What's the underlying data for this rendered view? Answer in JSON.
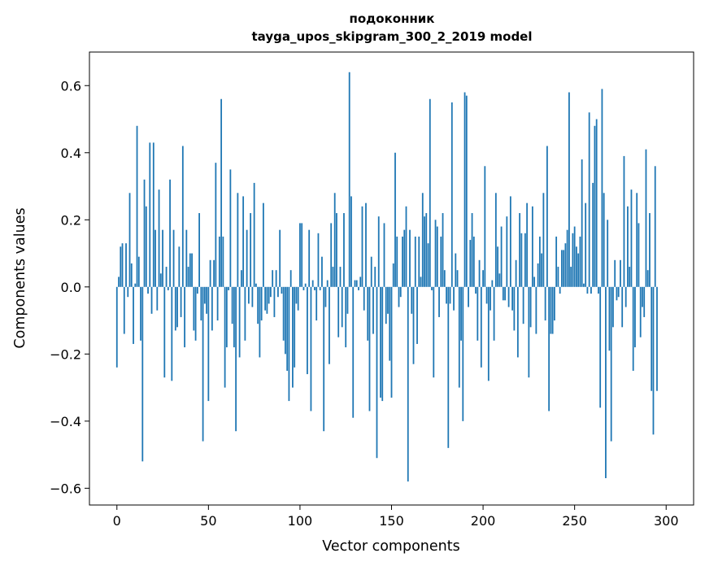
{
  "chart_data": {
    "type": "bar",
    "title": "подоконник",
    "subtitle": "tayga_upos_skipgram_300_2_2019 model",
    "xlabel": "Vector components",
    "ylabel": "Components values",
    "xlim": [
      -15,
      315
    ],
    "ylim": [
      -0.65,
      0.7
    ],
    "xticks": [
      0,
      50,
      100,
      150,
      200,
      250,
      300
    ],
    "xtick_labels": [
      "0",
      "50",
      "100",
      "150",
      "200",
      "250",
      "300"
    ],
    "yticks": [
      -0.6,
      -0.4,
      -0.2,
      0.0,
      0.2,
      0.4,
      0.6
    ],
    "ytick_labels": [
      "−0.6",
      "−0.4",
      "−0.2",
      "0.0",
      "0.2",
      "0.4",
      "0.6"
    ],
    "grid": false,
    "bar_color": "#1f77b4",
    "values": [
      -0.24,
      0.03,
      0.12,
      0.13,
      -0.14,
      0.13,
      -0.03,
      0.28,
      0.07,
      -0.17,
      0.01,
      0.48,
      0.09,
      -0.16,
      -0.52,
      0.32,
      0.24,
      -0.02,
      0.43,
      -0.08,
      0.43,
      0.17,
      -0.07,
      0.29,
      0.04,
      0.17,
      -0.27,
      0.06,
      -0.01,
      0.32,
      -0.28,
      0.17,
      -0.13,
      -0.12,
      0.12,
      -0.09,
      0.42,
      -0.18,
      0.17,
      0.06,
      0.1,
      0.1,
      -0.13,
      -0.16,
      -0.02,
      0.22,
      -0.1,
      -0.46,
      -0.05,
      -0.08,
      -0.34,
      0.08,
      -0.13,
      0.08,
      0.37,
      -0.1,
      0.15,
      0.56,
      0.15,
      -0.3,
      -0.18,
      -0.01,
      0.35,
      -0.11,
      -0.18,
      -0.43,
      0.28,
      -0.21,
      0.05,
      0.27,
      -0.16,
      0.17,
      -0.05,
      0.22,
      -0.06,
      0.31,
      0.01,
      -0.11,
      -0.21,
      -0.1,
      0.25,
      -0.07,
      -0.08,
      -0.05,
      -0.03,
      0.05,
      -0.09,
      0.05,
      -0.03,
      0.17,
      -0.02,
      -0.16,
      -0.2,
      -0.25,
      -0.34,
      0.05,
      -0.3,
      -0.24,
      -0.05,
      -0.07,
      0.19,
      0.19,
      -0.01,
      0.01,
      -0.26,
      0.17,
      -0.37,
      0.02,
      -0.01,
      -0.1,
      0.16,
      -0.01,
      0.09,
      -0.43,
      -0.06,
      0.02,
      -0.23,
      0.19,
      0.06,
      0.28,
      0.22,
      -0.15,
      0.06,
      -0.12,
      0.22,
      -0.18,
      -0.08,
      0.64,
      0.27,
      -0.39,
      0.02,
      0.02,
      -0.01,
      0.03,
      0.24,
      -0.07,
      0.25,
      -0.16,
      -0.37,
      0.09,
      -0.14,
      0.06,
      -0.51,
      0.21,
      -0.33,
      -0.34,
      0.19,
      -0.11,
      -0.08,
      -0.22,
      -0.33,
      0.07,
      0.4,
      0.15,
      -0.06,
      -0.03,
      0.15,
      0.17,
      0.24,
      -0.58,
      0.17,
      -0.08,
      -0.23,
      0.15,
      -0.17,
      0.15,
      0.03,
      0.28,
      0.21,
      0.22,
      0.13,
      0.56,
      -0.01,
      -0.27,
      0.2,
      0.18,
      -0.09,
      0.15,
      0.22,
      0.05,
      -0.05,
      -0.48,
      -0.05,
      0.55,
      -0.07,
      0.1,
      0.05,
      -0.3,
      -0.16,
      -0.4,
      0.58,
      0.57,
      -0.06,
      0.14,
      0.22,
      0.15,
      -0.02,
      -0.16,
      0.08,
      -0.24,
      0.05,
      0.36,
      -0.05,
      -0.28,
      -0.07,
      0.02,
      -0.16,
      0.28,
      0.12,
      0.04,
      0.18,
      -0.04,
      -0.04,
      0.21,
      -0.06,
      0.27,
      -0.07,
      -0.13,
      0.08,
      -0.21,
      0.22,
      0.16,
      -0.11,
      0.16,
      0.25,
      -0.27,
      -0.12,
      0.24,
      0.03,
      -0.14,
      0.07,
      0.15,
      0.1,
      0.28,
      -0.1,
      0.42,
      -0.37,
      -0.14,
      -0.14,
      -0.1,
      0.15,
      0.06,
      -0.02,
      0.11,
      0.11,
      0.13,
      0.17,
      0.58,
      0.06,
      0.16,
      0.18,
      0.12,
      0.1,
      0.15,
      0.38,
      0.01,
      0.25,
      -0.02,
      0.52,
      -0.02,
      0.31,
      0.48,
      0.5,
      -0.02,
      -0.36,
      0.59,
      0.28,
      -0.57,
      0.2,
      -0.19,
      -0.46,
      -0.12,
      0.08,
      -0.04,
      -0.03,
      0.08,
      -0.12,
      0.39,
      -0.06,
      0.24,
      0.06,
      0.29,
      -0.25,
      -0.18,
      0.28,
      0.19,
      -0.15,
      -0.06,
      -0.09,
      0.41,
      0.05,
      0.22,
      -0.31,
      -0.44,
      0.36,
      -0.31
    ]
  }
}
